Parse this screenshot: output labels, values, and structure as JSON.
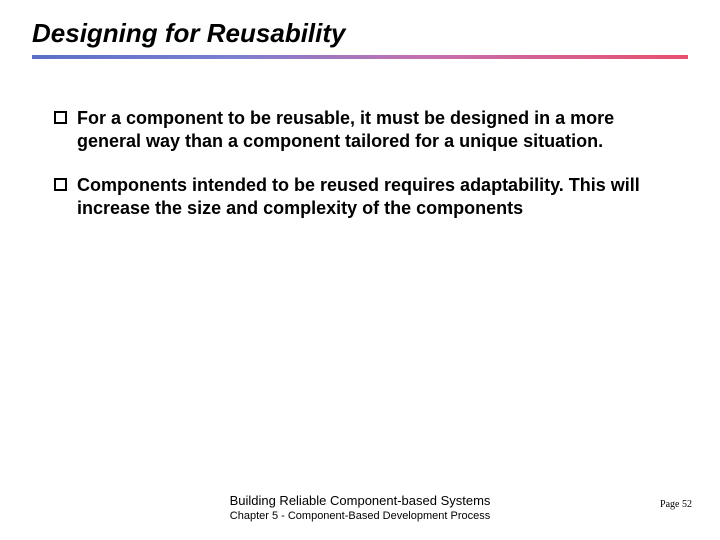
{
  "slide": {
    "title": "Designing for Reusability",
    "bullets": [
      "For a component to be reusable, it must be designed in a more general way than a component tailored for a unique situation.",
      "Components intended to be reused requires adaptability. This will increase the size and complexity of the components"
    ],
    "footer_title": "Building Reliable Component-based Systems",
    "footer_subtitle": "Chapter 5 - Component-Based Development Process",
    "page_number": "Page 52"
  },
  "style": {
    "title_fontsize": 26,
    "title_color": "#000000",
    "bullet_fontsize": 18,
    "bullet_text_color": "#000000",
    "bullet_box_border": "#000000",
    "gradient_colors": [
      "#5b6fc7",
      "#7a7fd0",
      "#c46fb0",
      "#e8506e"
    ],
    "gradient_line_height": 4,
    "background_color": "#ffffff",
    "footer_fontsize": 13,
    "footer_sub_fontsize": 11,
    "page_num_fontsize": 10
  }
}
